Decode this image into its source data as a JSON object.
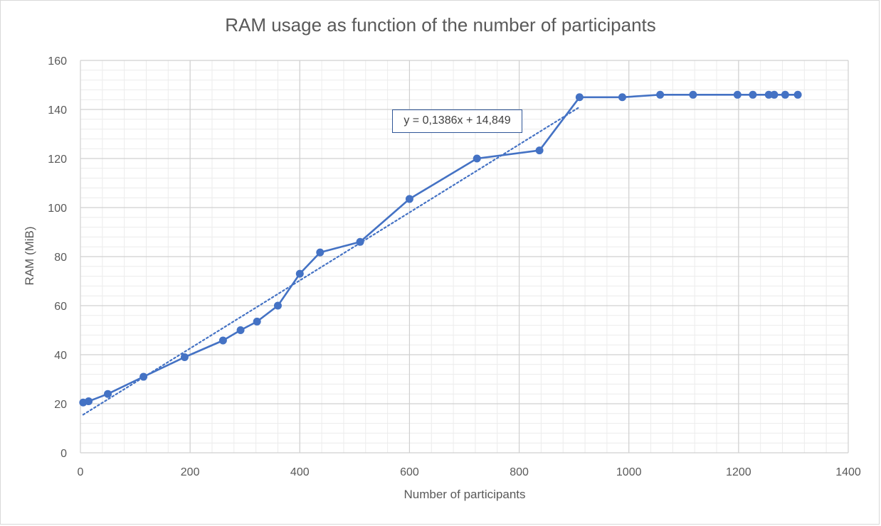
{
  "chart_data": {
    "type": "scatter",
    "title": "RAM usage as function of the number of participants",
    "xlabel": "Number of participants",
    "ylabel": "RAM (MiB)",
    "xlim": [
      0,
      1400
    ],
    "ylim": [
      0,
      160
    ],
    "x_ticks": [
      0,
      200,
      400,
      600,
      800,
      1000,
      1200,
      1400
    ],
    "y_ticks": [
      0,
      20,
      40,
      60,
      80,
      100,
      120,
      140,
      160
    ],
    "grid": true,
    "series": [
      {
        "color": "#4472c4",
        "x": [
          5,
          15,
          50,
          115,
          190,
          260,
          292,
          322,
          360,
          400,
          437,
          510,
          600,
          723,
          837,
          910,
          988,
          1057,
          1117,
          1198,
          1226,
          1255,
          1265,
          1285,
          1308
        ],
        "y": [
          20.5,
          21,
          24,
          31,
          39,
          45.8,
          50,
          53.5,
          60,
          73,
          81.7,
          86,
          103.5,
          120,
          123.3,
          145,
          145,
          146,
          146,
          146,
          146,
          146,
          146,
          146,
          146
        ]
      }
    ],
    "trendline": {
      "type": "linear",
      "slope": 0.1386,
      "intercept": 14.849,
      "x_range": [
        5,
        910
      ],
      "label": "y = 0,1386x + 14,849",
      "color": "#4472c4",
      "style": "dotted"
    }
  }
}
